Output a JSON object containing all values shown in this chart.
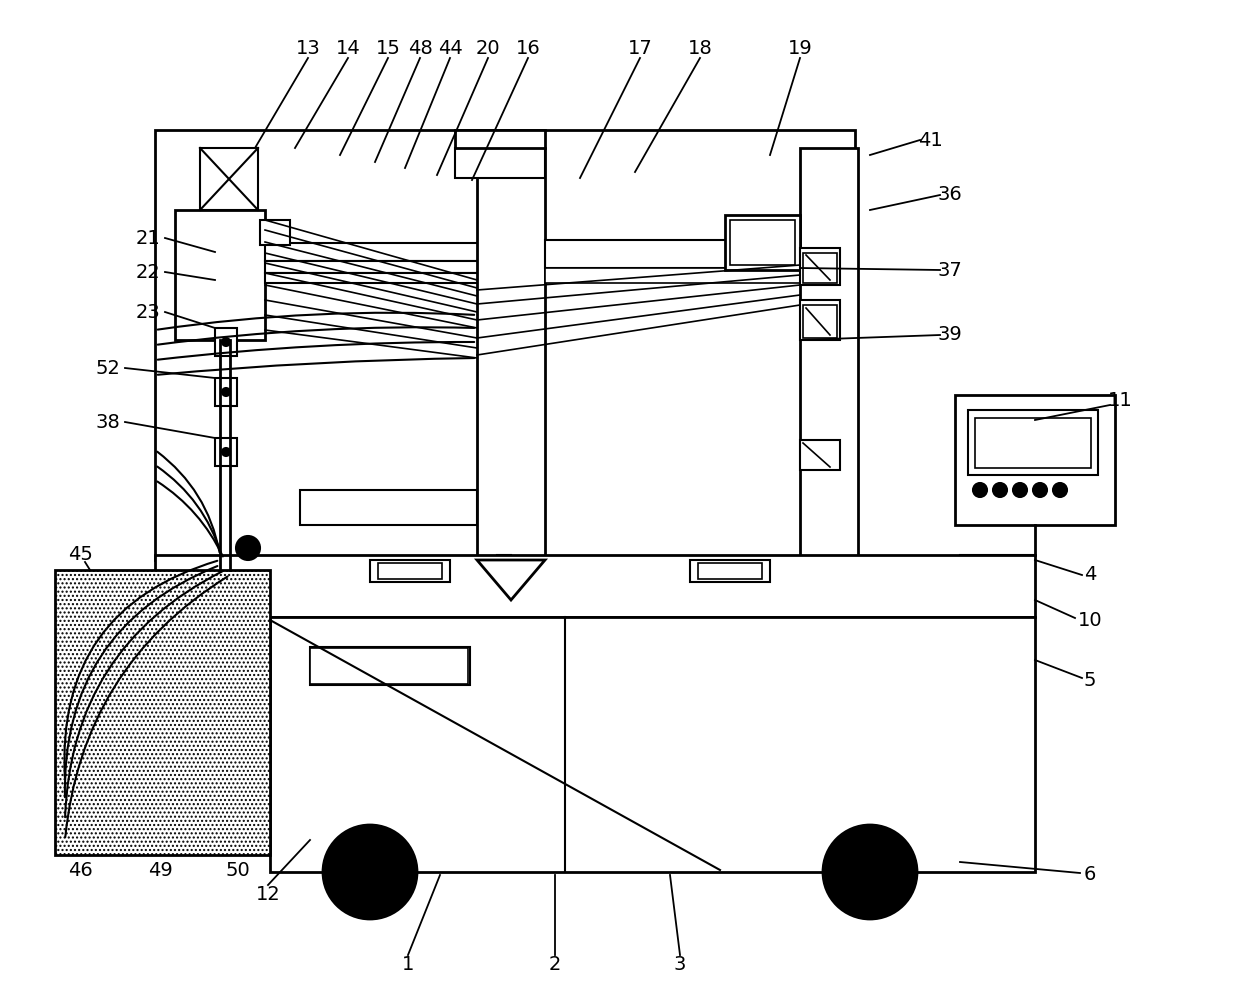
{
  "bg_color": "#ffffff",
  "line_color": "#000000",
  "fig_width": 12.4,
  "fig_height": 10.08,
  "top_labels": [
    [
      "13",
      308,
      48,
      255,
      148
    ],
    [
      "14",
      348,
      48,
      295,
      148
    ],
    [
      "15",
      388,
      48,
      340,
      155
    ],
    [
      "48",
      420,
      48,
      375,
      162
    ],
    [
      "44",
      450,
      48,
      405,
      168
    ],
    [
      "20",
      488,
      48,
      437,
      175
    ],
    [
      "16",
      528,
      48,
      472,
      180
    ],
    [
      "17",
      640,
      48,
      580,
      178
    ],
    [
      "18",
      700,
      48,
      635,
      172
    ],
    [
      "19",
      800,
      48,
      770,
      155
    ]
  ],
  "right_labels": [
    [
      "41",
      930,
      140,
      870,
      155
    ],
    [
      "36",
      950,
      195,
      870,
      210
    ],
    [
      "37",
      950,
      270,
      800,
      268
    ],
    [
      "39",
      950,
      335,
      800,
      340
    ]
  ],
  "left_labels": [
    [
      "21",
      160,
      238,
      215,
      252
    ],
    [
      "22",
      160,
      272,
      215,
      280
    ],
    [
      "23",
      160,
      312,
      215,
      328
    ],
    [
      "52",
      120,
      368,
      215,
      378
    ],
    [
      "38",
      120,
      422,
      215,
      438
    ]
  ]
}
